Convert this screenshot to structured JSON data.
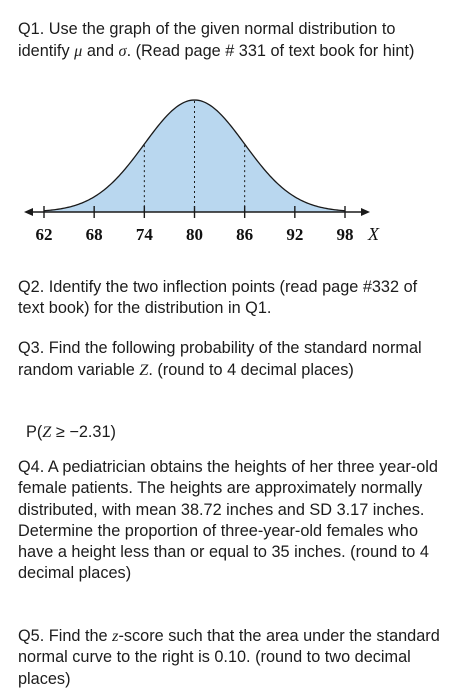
{
  "q1": {
    "part1": "Q1. Use the graph of the given normal distribution to identify ",
    "mu": "μ",
    "and": " and ",
    "sigma": "σ",
    "part2": ". (Read page # 331 of text book for hint)"
  },
  "chart_data": {
    "type": "area",
    "distribution": "normal",
    "mean": 80,
    "sd": 6,
    "x_ticks": [
      "62",
      "68",
      "74",
      "80",
      "86",
      "92",
      "98"
    ],
    "xlabel": "X",
    "xlim": [
      62,
      98
    ],
    "shaded": true,
    "fill_color": "#b9d7ef",
    "dashed_lines_at": [
      74,
      80,
      86
    ]
  },
  "q2": "Q2. Identify the two inflection points (read page #332 of text book) for the distribution in Q1.",
  "q3": {
    "part1": "Q3. Find the following probability of the standard normal random variable ",
    "z": "Z",
    "part2": ". (round to  4 decimal places)"
  },
  "formula": {
    "p_open": "P(",
    "z": "Z",
    "rest": " ≥ −2.31)"
  },
  "q4": "Q4. A pediatrician obtains the heights of her three year-old female patients. The heights are approximately normally distributed, with  mean 38.72 inches and SD 3.17 inches. Determine the proportion of three-year-old females who have a height less than or equal to 35 inches.  (round to  4 decimal places)",
  "q5": {
    "part1": "Q5. Find the ",
    "z": "z",
    "part2": "-score such that the area under the standard normal curve to the right is 0.10. (round to two decimal places)"
  }
}
